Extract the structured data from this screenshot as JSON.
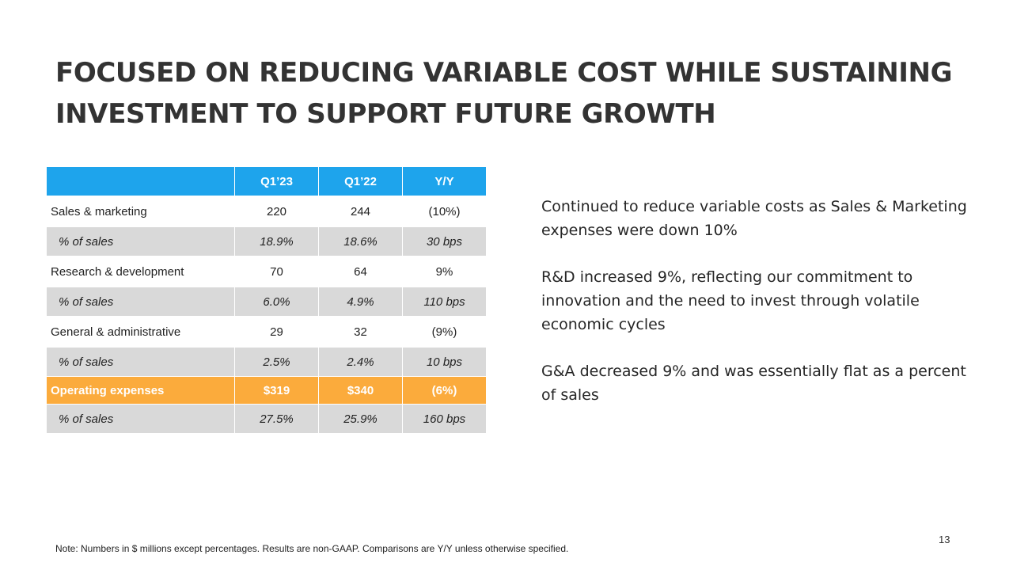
{
  "title": {
    "line1": "FOCUSED ON REDUCING VARIABLE COST WHILE SUSTAINING",
    "line2": "INVESTMENT TO SUPPORT FUTURE GROWTH"
  },
  "table": {
    "headers": [
      "",
      "Q1’23",
      "Q1’22",
      "Y/Y"
    ],
    "rows": [
      {
        "label": "Sales & marketing",
        "q123": "220",
        "q122": "244",
        "yy": "(10%)"
      },
      {
        "label": "% of sales",
        "q123": "18.9%",
        "q122": "18.6%",
        "yy": "30 bps"
      },
      {
        "label": "Research & development",
        "q123": "70",
        "q122": "64",
        "yy": "9%"
      },
      {
        "label": "% of sales",
        "q123": "6.0%",
        "q122": "4.9%",
        "yy": "110 bps"
      },
      {
        "label": "General & administrative",
        "q123": "29",
        "q122": "32",
        "yy": "(9%)"
      },
      {
        "label": "% of sales",
        "q123": "2.5%",
        "q122": "2.4%",
        "yy": "10 bps"
      },
      {
        "label": "Operating expenses",
        "q123": "$319",
        "q122": "$340",
        "yy": "(6%)"
      },
      {
        "label": "% of sales",
        "q123": "27.5%",
        "q122": "25.9%",
        "yy": "160 bps"
      }
    ]
  },
  "commentary": [
    "Continued to reduce variable costs as Sales & Marketing expenses were down 10%",
    "R&D increased 9%, reflecting our commitment to innovation and the need to invest through volatile economic cycles",
    "G&A decreased 9% and was essentially flat as a percent of sales"
  ],
  "note": "Note:  Numbers in $ millions except percentages. Results are non-GAAP. Comparisons are Y/Y unless otherwise specified.",
  "page_number": "13",
  "colors": {
    "header_blue": "#1ea4ec",
    "highlight_orange": "#fbab3c",
    "row_gray": "#d9d9d9"
  }
}
